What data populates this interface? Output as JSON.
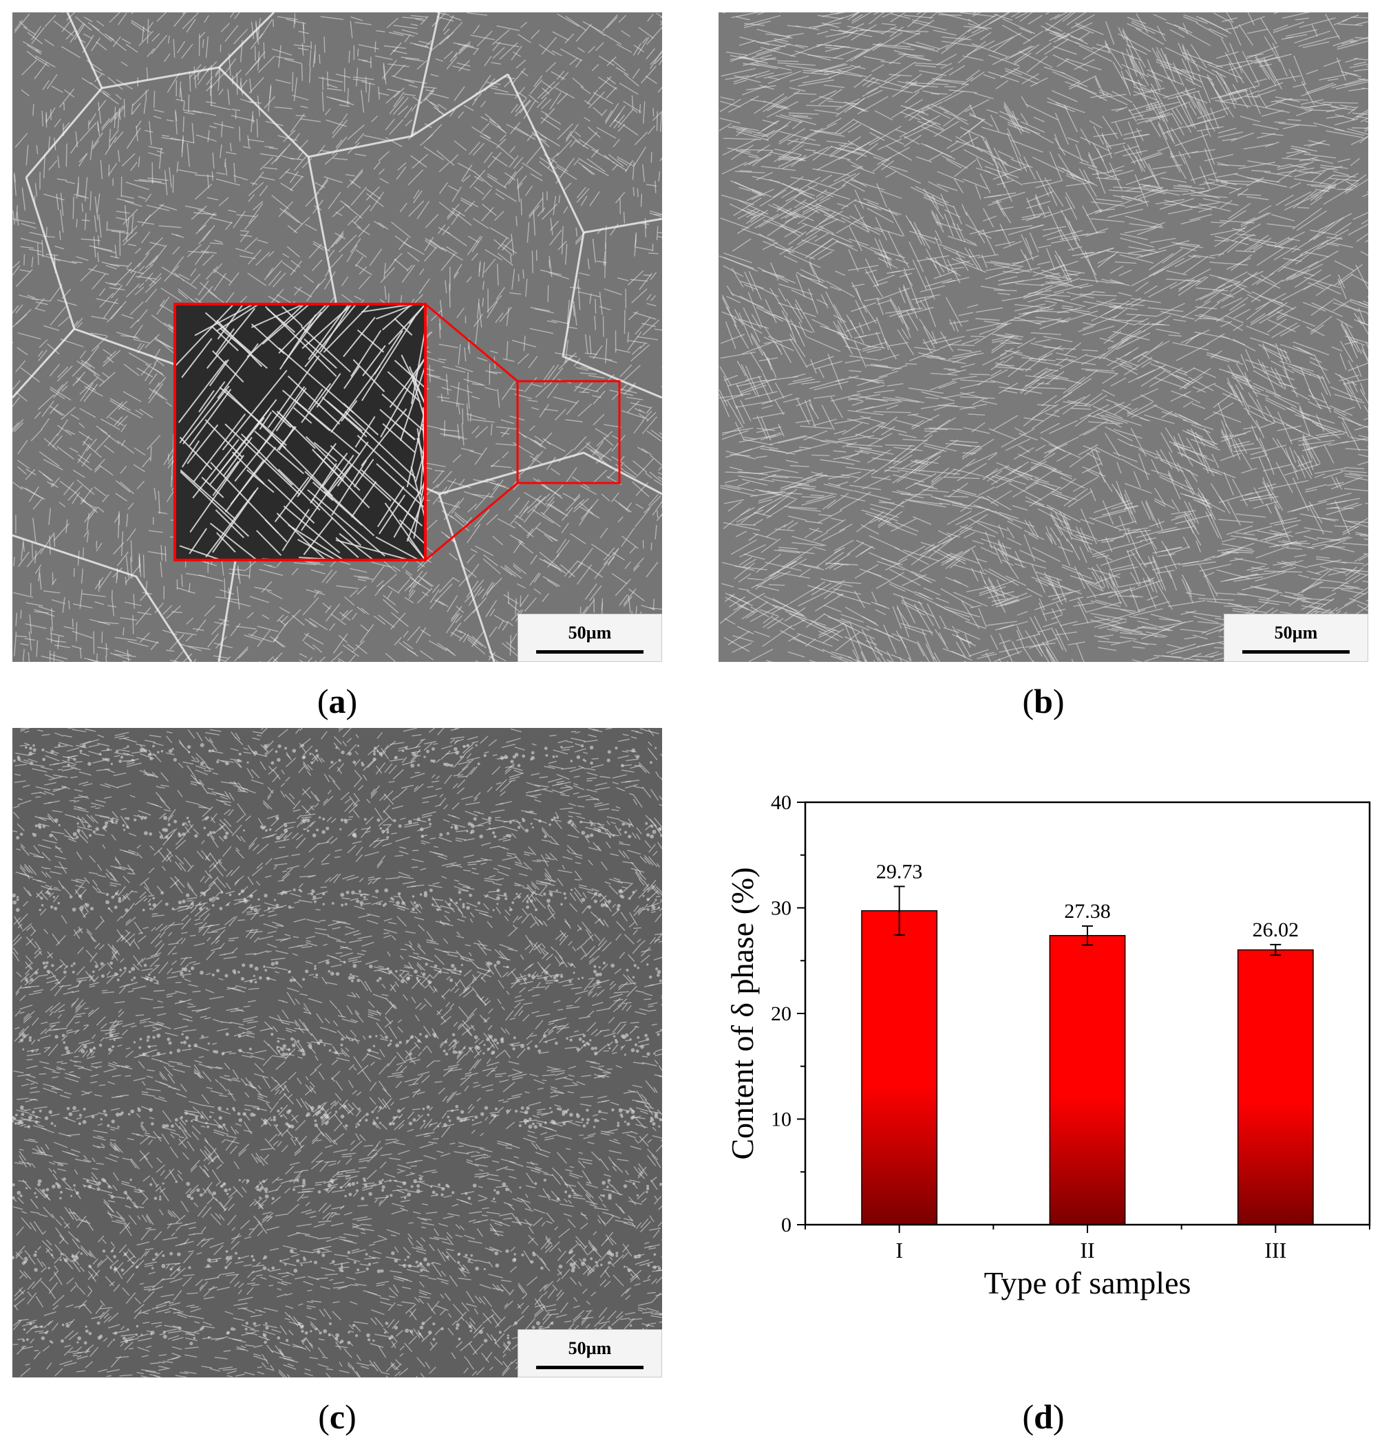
{
  "panels": [
    {
      "id": "a",
      "label": "a",
      "scale": "50µm"
    },
    {
      "id": "b",
      "label": "b",
      "scale": "50µm"
    },
    {
      "id": "c",
      "label": "c",
      "scale": "50µm"
    },
    {
      "id": "d",
      "label": "d"
    }
  ],
  "colors": {
    "bar_top": "#ff0000",
    "bar_bottom": "#7a0000",
    "inset_border": "#ff0000",
    "micrograph_base": "#6d6d6d",
    "micrograph_line": "#e8e8e8"
  },
  "chart_data": {
    "type": "bar",
    "categories": [
      "I",
      "II",
      "III"
    ],
    "values": [
      29.73,
      27.38,
      26.02
    ],
    "errors": [
      2.3,
      0.9,
      0.5
    ],
    "data_labels": [
      "29.73",
      "27.38",
      "26.02"
    ],
    "title": "",
    "xlabel": "Type of samples",
    "ylabel": "Content of δ phase (%)",
    "ylim": [
      0,
      40
    ],
    "yticks": [
      0,
      10,
      20,
      30,
      40
    ],
    "grid": false,
    "legend": "none"
  }
}
